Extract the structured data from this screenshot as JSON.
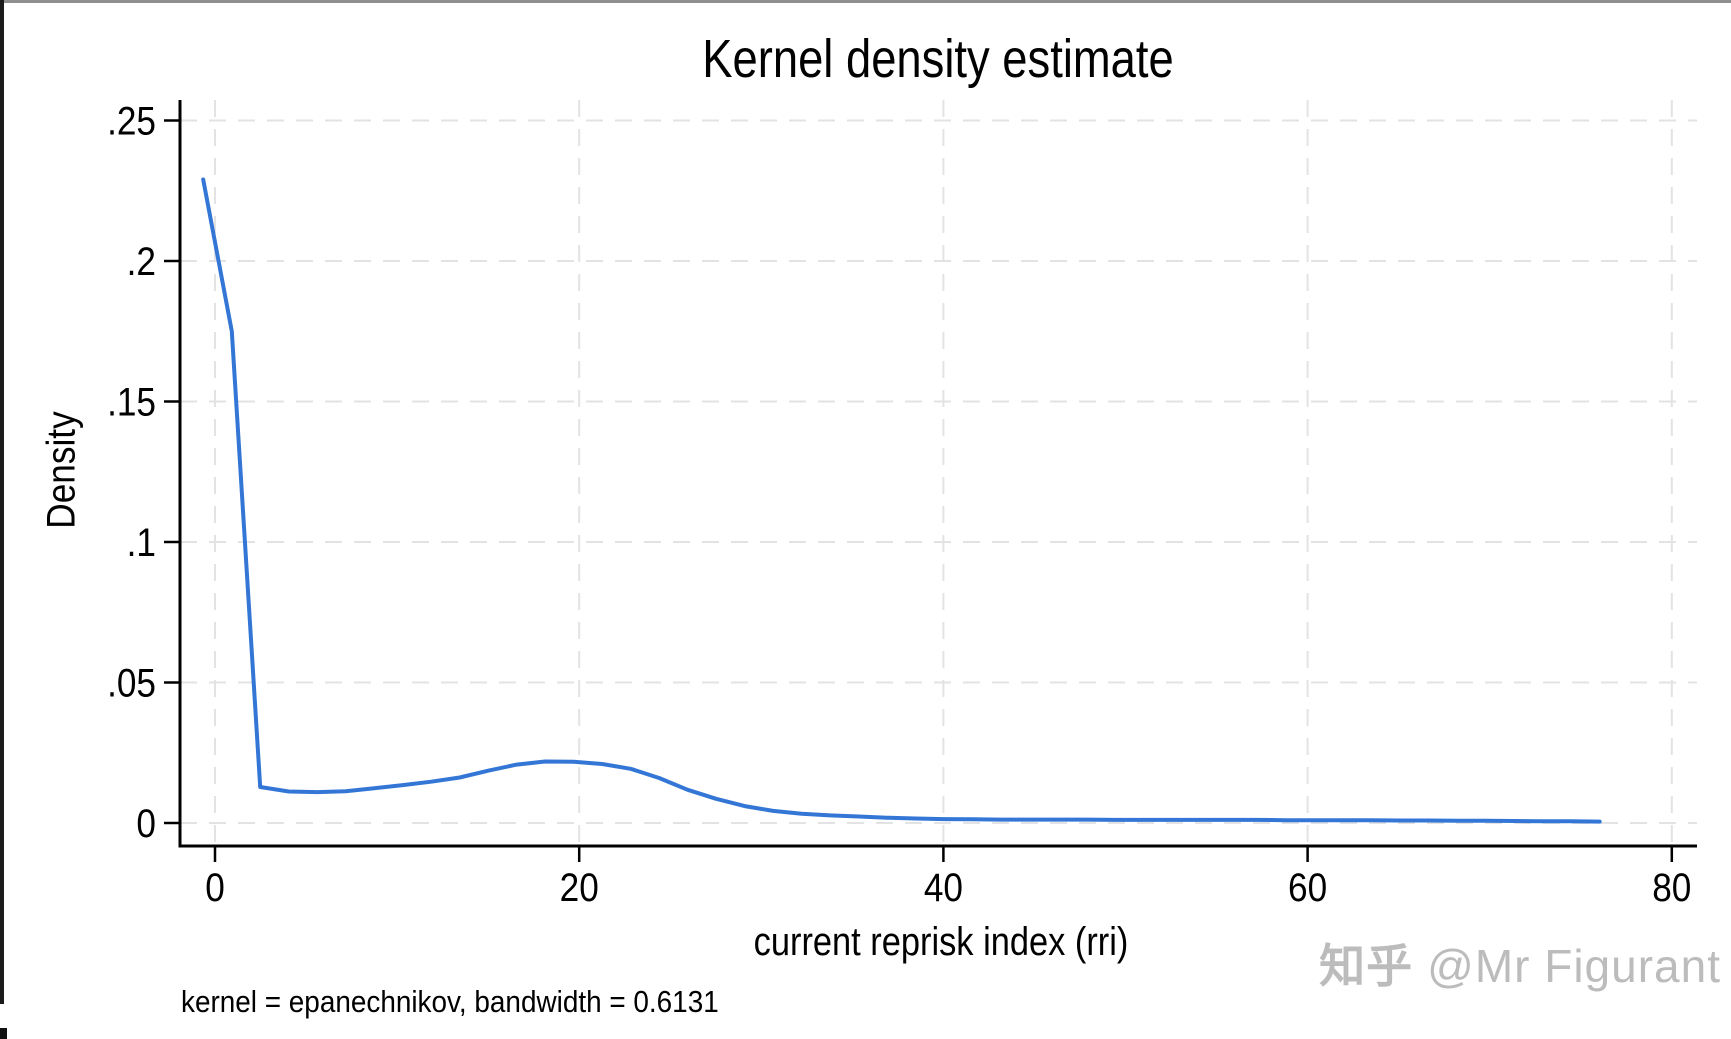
{
  "frame": {
    "top_bar_color": "#8f8f8f",
    "left_bar_color": "#1b1b1b"
  },
  "watermark": {
    "site": "知乎",
    "handle": "@Mr Figurant",
    "color": "#bcbcbc"
  },
  "chart_data": {
    "type": "line",
    "title": "Kernel density estimate",
    "xlabel": "current reprisk index (rri)",
    "ylabel": "Density",
    "note": "kernel = epanechnikov, bandwidth = 0.6131",
    "xlim": [
      -2,
      81.5
    ],
    "ylim": [
      0,
      0.257
    ],
    "xticks": [
      0,
      20,
      40,
      60,
      80
    ],
    "xtick_labels": [
      "0",
      "20",
      "40",
      "60",
      "80"
    ],
    "yticks": [
      0,
      0.05,
      0.1,
      0.15,
      0.2,
      0.25
    ],
    "ytick_labels": [
      "0",
      ".05",
      ".1",
      ".15",
      ".2",
      ".25"
    ],
    "grid": true,
    "grid_color": "#e3e3e3",
    "axis_color": "#000000",
    "line_color": "#3376d6",
    "legend_position": "none",
    "series": [
      {
        "name": "kdensity rri",
        "points": [
          [
            -0.65,
            0.229
          ],
          [
            0.92,
            0.175
          ],
          [
            2.48,
            0.0128
          ],
          [
            4.05,
            0.0112
          ],
          [
            5.61,
            0.011
          ],
          [
            7.18,
            0.0113
          ],
          [
            8.74,
            0.0124
          ],
          [
            10.31,
            0.0135
          ],
          [
            11.87,
            0.0147
          ],
          [
            13.44,
            0.0162
          ],
          [
            15.0,
            0.0186
          ],
          [
            16.57,
            0.0208
          ],
          [
            18.13,
            0.0219
          ],
          [
            19.7,
            0.0218
          ],
          [
            21.26,
            0.021
          ],
          [
            22.83,
            0.0193
          ],
          [
            24.39,
            0.016
          ],
          [
            25.96,
            0.0118
          ],
          [
            27.52,
            0.0086
          ],
          [
            29.09,
            0.006
          ],
          [
            30.65,
            0.0043
          ],
          [
            32.22,
            0.0033
          ],
          [
            33.78,
            0.0027
          ],
          [
            35.35,
            0.0023
          ],
          [
            36.91,
            0.0019
          ],
          [
            38.48,
            0.0016
          ],
          [
            40.04,
            0.0014
          ],
          [
            41.61,
            0.0013
          ],
          [
            43.17,
            0.0012
          ],
          [
            44.74,
            0.0012
          ],
          [
            46.3,
            0.0012
          ],
          [
            47.87,
            0.0012
          ],
          [
            49.43,
            0.0011
          ],
          [
            51.0,
            0.0011
          ],
          [
            52.56,
            0.0011
          ],
          [
            54.13,
            0.0011
          ],
          [
            55.69,
            0.0011
          ],
          [
            57.26,
            0.0011
          ],
          [
            58.82,
            0.001
          ],
          [
            60.39,
            0.001
          ],
          [
            61.95,
            0.001
          ],
          [
            63.52,
            0.001
          ],
          [
            65.08,
            0.0009
          ],
          [
            66.65,
            0.0009
          ],
          [
            68.21,
            0.0008
          ],
          [
            69.78,
            0.0008
          ],
          [
            71.34,
            0.0007
          ],
          [
            72.91,
            0.0006
          ],
          [
            74.47,
            0.0006
          ],
          [
            76.04,
            0.0005
          ]
        ]
      }
    ]
  }
}
